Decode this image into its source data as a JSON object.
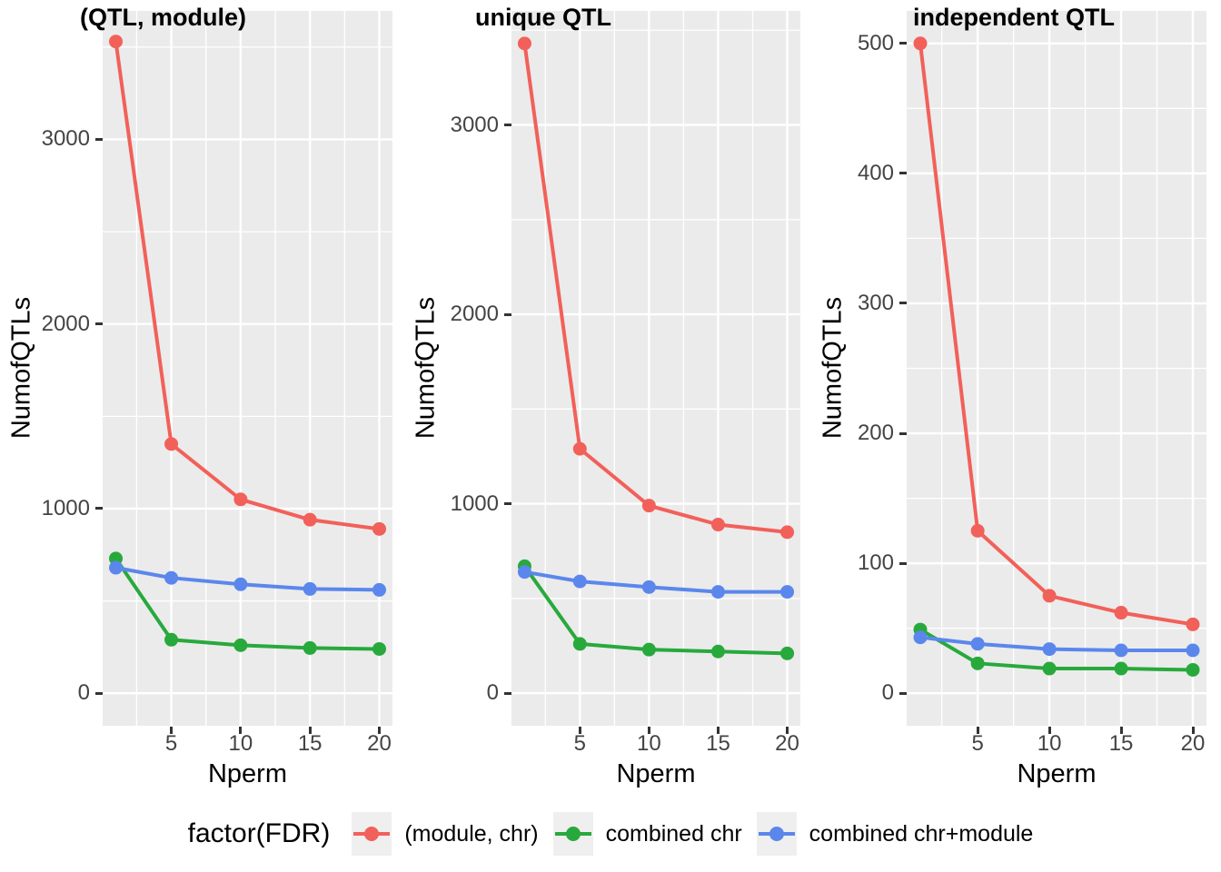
{
  "figure": {
    "background": "#FFFFFF",
    "panel_background": "#EBEBEB",
    "grid_color": "#FFFFFF",
    "tick_mark_color": "#333333",
    "tick_label_color": "#444444",
    "legend_key_background": "#EFEFEF"
  },
  "legend": {
    "title": "factor(FDR)",
    "position": "bottom",
    "items": [
      {
        "label": "(module, chr)",
        "color": "#F2605A"
      },
      {
        "label": "combined chr",
        "color": "#28A93C"
      },
      {
        "label": "combined chr+module",
        "color": "#5B87EC"
      }
    ]
  },
  "chart_data": [
    {
      "type": "line",
      "title": "(QTL, module)",
      "xlabel": "Nperm",
      "ylabel": "NumofQTLs",
      "x": [
        1,
        5,
        10,
        15,
        20
      ],
      "series": [
        {
          "name": "(module, chr)",
          "color": "#F2605A",
          "values": [
            3530,
            1350,
            1050,
            940,
            890
          ]
        },
        {
          "name": "combined chr",
          "color": "#28A93C",
          "values": [
            730,
            290,
            260,
            245,
            240
          ]
        },
        {
          "name": "combined chr+module",
          "color": "#5B87EC",
          "values": [
            680,
            625,
            590,
            565,
            560
          ]
        }
      ],
      "xlim": [
        0.05,
        20.95
      ],
      "ylim": [
        -176,
        3696
      ],
      "xticks": [
        5,
        10,
        15,
        20
      ],
      "yticks": [
        0,
        1000,
        2000,
        3000
      ],
      "xminor": [
        2.5,
        7.5,
        12.5,
        17.5
      ],
      "yminor": [
        500,
        1500,
        2500,
        3500
      ],
      "grid": true
    },
    {
      "type": "line",
      "title": "unique QTL",
      "xlabel": "Nperm",
      "ylabel": "NumofQTLs",
      "x": [
        1,
        5,
        10,
        15,
        20
      ],
      "series": [
        {
          "name": "(module, chr)",
          "color": "#F2605A",
          "values": [
            3430,
            1290,
            990,
            890,
            850
          ]
        },
        {
          "name": "combined chr",
          "color": "#28A93C",
          "values": [
            670,
            260,
            230,
            220,
            210
          ]
        },
        {
          "name": "combined chr+module",
          "color": "#5B87EC",
          "values": [
            640,
            590,
            560,
            535,
            535
          ]
        }
      ],
      "xlim": [
        0.05,
        20.95
      ],
      "ylim": [
        -172,
        3602
      ],
      "xticks": [
        5,
        10,
        15,
        20
      ],
      "yticks": [
        0,
        1000,
        2000,
        3000
      ],
      "xminor": [
        2.5,
        7.5,
        12.5,
        17.5
      ],
      "yminor": [
        500,
        1500,
        2500,
        3500
      ],
      "grid": true
    },
    {
      "type": "line",
      "title": "independent QTL",
      "xlabel": "Nperm",
      "ylabel": "NumofQTLs",
      "x": [
        1,
        5,
        10,
        15,
        20
      ],
      "series": [
        {
          "name": "(module, chr)",
          "color": "#F2605A",
          "values": [
            500,
            125,
            75,
            62,
            53
          ]
        },
        {
          "name": "combined chr",
          "color": "#28A93C",
          "values": [
            49,
            23,
            19,
            19,
            18
          ]
        },
        {
          "name": "combined chr+module",
          "color": "#5B87EC",
          "values": [
            43,
            38,
            34,
            33,
            33
          ]
        }
      ],
      "xlim": [
        0.05,
        20.95
      ],
      "ylim": [
        -25,
        525
      ],
      "xticks": [
        5,
        10,
        15,
        20
      ],
      "yticks": [
        0,
        100,
        200,
        300,
        400,
        500
      ],
      "xminor": [
        2.5,
        7.5,
        12.5,
        17.5
      ],
      "yminor": [
        50,
        150,
        250,
        350,
        450
      ],
      "grid": true
    }
  ]
}
